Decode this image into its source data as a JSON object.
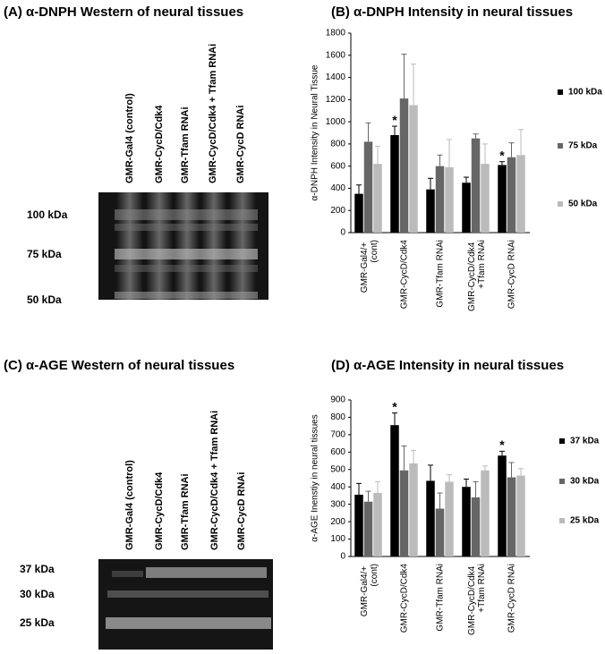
{
  "chart_data": [
    {
      "type": "bar",
      "title": "(B) α-DNPH Intensity in neural tissues",
      "y_label": "α-DNPH Intensity in Neural Tissue",
      "categories": [
        "GMR-Gal4/+ (cont)",
        "GMR-CycD/Cdk4",
        "GMR-Tfam RNAi",
        "GMR-CycD/Cdk4 +Tfam RNAi",
        "GMR-CycD RNAi"
      ],
      "series": [
        {
          "name": "100 kDa",
          "color": "#000000",
          "values": [
            350,
            880,
            390,
            450,
            610
          ],
          "errors": [
            80,
            80,
            100,
            50,
            30
          ]
        },
        {
          "name": "75 kDa",
          "color": "#666666",
          "values": [
            820,
            1210,
            600,
            850,
            680
          ],
          "errors": [
            170,
            400,
            100,
            40,
            130
          ]
        },
        {
          "name": "50 kDa",
          "color": "#bbbbbb",
          "values": [
            620,
            1150,
            590,
            620,
            700
          ],
          "errors": [
            160,
            370,
            250,
            180,
            230
          ]
        }
      ],
      "annotations": [
        {
          "text": "*",
          "category": "GMR-CycD/Cdk4",
          "series": "100 kDa"
        },
        {
          "text": "*",
          "category": "GMR-CycD RNAi",
          "series": "100 kDa"
        }
      ],
      "ylim": [
        0,
        1800
      ],
      "yticks": [
        0,
        200,
        400,
        600,
        800,
        1000,
        1200,
        1400,
        1600,
        1800
      ],
      "legend": "right"
    },
    {
      "type": "bar",
      "title": "(D) α-AGE Intensity in neural  tissues",
      "y_label": "α-AGE Inenstiy in neural tissues",
      "categories": [
        "GMR-Gal4/+ (cont)",
        "GMR-CycD/Cdk4",
        "GMR-Tfam RNAi",
        "GMR-CycD/Cdk4 +Tfam RNAi",
        "GMR-CycD RNAi"
      ],
      "series": [
        {
          "name": "37 kDa",
          "color": "#000000",
          "values": [
            355,
            755,
            435,
            400,
            580
          ],
          "errors": [
            65,
            70,
            90,
            45,
            25
          ]
        },
        {
          "name": "30 kDa",
          "color": "#666666",
          "values": [
            315,
            495,
            275,
            340,
            455
          ],
          "errors": [
            60,
            140,
            90,
            90,
            85
          ]
        },
        {
          "name": "25 kDa",
          "color": "#bbbbbb",
          "values": [
            365,
            535,
            430,
            495,
            465
          ],
          "errors": [
            65,
            75,
            40,
            25,
            40
          ]
        }
      ],
      "annotations": [
        {
          "text": "*",
          "category": "GMR-CycD/Cdk4",
          "series": "37 kDa"
        },
        {
          "text": "*",
          "category": "GMR-CycD RNAi",
          "series": "37 kDa"
        }
      ],
      "ylim": [
        0,
        900
      ],
      "yticks": [
        0,
        100,
        200,
        300,
        400,
        500,
        600,
        700,
        800,
        900
      ],
      "legend": "right"
    }
  ],
  "blots": [
    {
      "title": "(A) α-DNPH Western of neural tissues",
      "lanes": [
        "GMR-Gal4 (control)",
        "GMR-CycD/Cdk4",
        "GMR-Tfam RNAi",
        "GMR-CycD/Cdk4 + Tfam RNAi",
        "GMR-CycD RNAi"
      ],
      "bands": [
        "100 kDa",
        "75 kDa",
        "50 kDa"
      ]
    },
    {
      "title": "(C) α-AGE Western of neural tissues",
      "lanes": [
        "GMR-Gal4 (control)",
        "GMR-CycD/Cdk4",
        "GMR-Tfam RNAi",
        "GMR-CycD/Cdk4 + Tfam RNAi",
        "GMR-CycD RNAi"
      ],
      "bands": [
        "37 kDa",
        "30 kDa",
        "25 kDa"
      ]
    }
  ]
}
